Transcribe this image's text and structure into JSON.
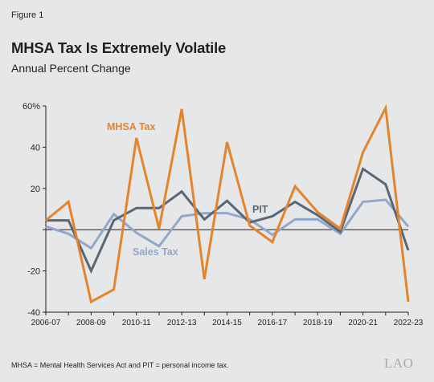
{
  "figure_label": "Figure 1",
  "footnote": "MHSA = Mental Health Services Act and PIT = personal income tax.",
  "logo_text": "LAO",
  "colors": {
    "mhsa": "#e5842b",
    "pit": "#596775",
    "sales": "#93a7cb",
    "text": "#231f20",
    "background": "#e6e7e8"
  },
  "chart_data": {
    "type": "line",
    "title": "MHSA Tax Is Extremely Volatile",
    "subtitle": "Annual Percent Change",
    "xlabel": "",
    "ylabel": "",
    "ylim": [
      -40,
      60
    ],
    "yticks": [
      -40,
      -20,
      0,
      20,
      40,
      60
    ],
    "ytick_labels": [
      "-40",
      "-20",
      "",
      "20",
      "40",
      "60%"
    ],
    "x": [
      "2006-07",
      "2007-08",
      "2008-09",
      "2009-10",
      "2010-11",
      "2011-12",
      "2012-13",
      "2013-14",
      "2014-15",
      "2015-16",
      "2016-17",
      "2017-18",
      "2018-19",
      "2019-20",
      "2020-21",
      "2021-22",
      "2022-23"
    ],
    "xtick_labels": [
      "2006-07",
      "2008-09",
      "2010-11",
      "2012-13",
      "2014-15",
      "2016-17",
      "2018-19",
      "2020-21",
      "2022-23"
    ],
    "grid": false,
    "series": [
      {
        "name": "Sales Tax",
        "color_key": "sales",
        "values": [
          1.5,
          -2,
          -9,
          7.5,
          -1.5,
          -8,
          6.5,
          8,
          8,
          5,
          -2.5,
          5,
          5,
          -2,
          13.5,
          14.5,
          1.5
        ]
      },
      {
        "name": "PIT",
        "color_key": "pit",
        "values": [
          4.5,
          4.5,
          -20,
          4.5,
          10.5,
          10.5,
          18.5,
          5,
          14,
          3.5,
          6.5,
          13.5,
          7,
          -1,
          29.5,
          22,
          -10
        ]
      },
      {
        "name": "MHSA Tax",
        "color_key": "mhsa",
        "values": [
          4.5,
          13.5,
          -35,
          -29,
          44.5,
          0.5,
          58.5,
          -24,
          42.5,
          2,
          -6,
          21,
          8.5,
          0.5,
          37.5,
          59,
          -35
        ]
      }
    ],
    "annotations": [
      {
        "text": "MHSA Tax",
        "series": "MHSA Tax"
      },
      {
        "text": "PIT",
        "series": "PIT"
      },
      {
        "text": "Sales Tax",
        "series": "Sales Tax"
      }
    ]
  }
}
